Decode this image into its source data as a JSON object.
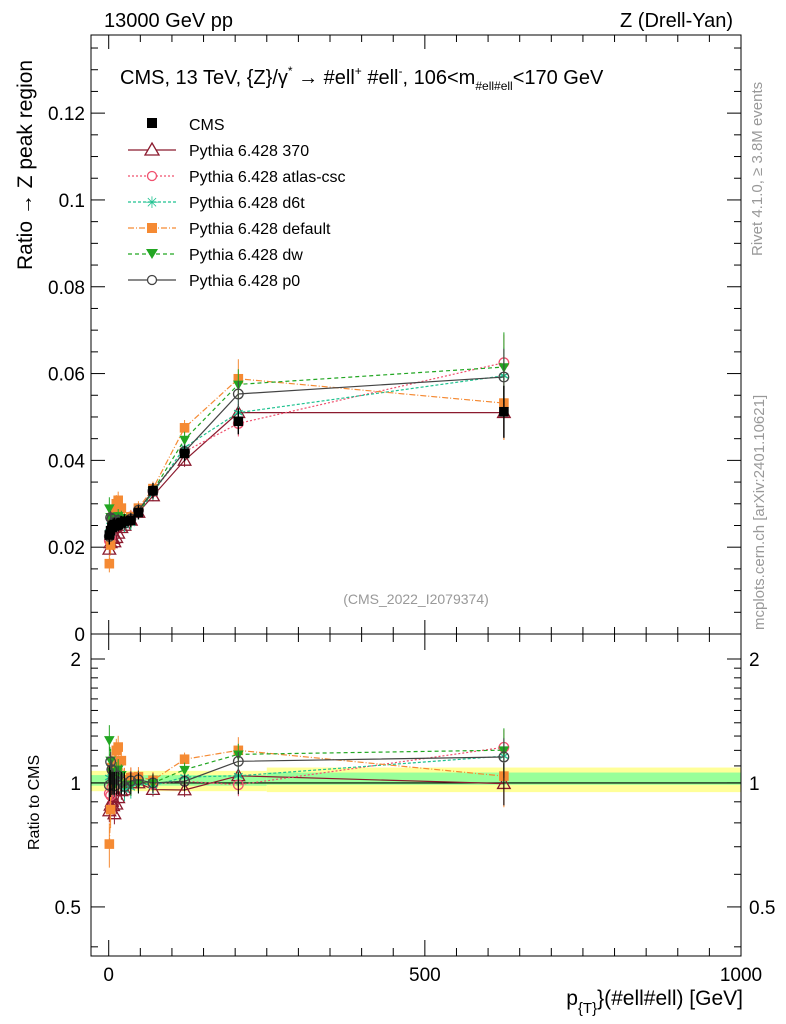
{
  "header": {
    "left": "13000 GeV pp",
    "right": "Z (Drell-Yan)"
  },
  "side_labels": {
    "rivet": "Rivet 4.1.0, ≥ 3.8M events",
    "mcplots": "mcplots.cern.ch [arXiv:2401.10621]"
  },
  "colors": {
    "cms": "#000000",
    "p370": "#8b1a2e",
    "atlas": "#f0506e",
    "d6t": "#1fc290",
    "default": "#f58a33",
    "dw": "#22a622",
    "p0": "#444444",
    "band_outer": "#ffff99",
    "band_inner": "#99ff99",
    "watermark": "#999999"
  },
  "chart_data": [
    {
      "type": "line",
      "panel": "main",
      "title": "CMS, 13 TeV, {Z}/γ* → #ell⁺ #ell⁻, 106<m_{#ell#ell}<170 GeV",
      "title_parts": {
        "a": "CMS, 13 TeV, {Z}/",
        "b": "γ",
        "c": "*",
        "d": " →  #ell",
        "e": "+",
        "f": " #ell",
        "g": "-",
        "h": ", 106<m",
        "i": "#ell#ell",
        "j": "<170 GeV"
      },
      "ylabel": "Ratio → Z peak region",
      "xlim": [
        -28,
        1000
      ],
      "ylim": [
        0,
        0.138
      ],
      "yticks": [
        {
          "v": 0,
          "label": "0"
        },
        {
          "v": 0.02,
          "label": "0.02"
        },
        {
          "v": 0.04,
          "label": "0.04"
        },
        {
          "v": 0.06,
          "label": "0.06"
        },
        {
          "v": 0.08,
          "label": "0.08"
        },
        {
          "v": 0.1,
          "label": "0.1"
        },
        {
          "v": 0.12,
          "label": "0.12"
        }
      ],
      "watermark": "(CMS_2022_I2079374)",
      "x": [
        1,
        3,
        5,
        7,
        9,
        12,
        15,
        20,
        25,
        35,
        47,
        70,
        120,
        205,
        625
      ],
      "series": [
        {
          "name": "CMS",
          "key": "cms",
          "marker": "square-filled",
          "dash": "solid",
          "values": [
            0.0228,
            0.0238,
            0.0246,
            0.025,
            0.0252,
            0.025,
            0.0252,
            0.0256,
            0.026,
            0.0262,
            0.028,
            0.033,
            0.0416,
            0.049,
            0.0512
          ],
          "errors": [
            0.0022,
            0.0018,
            0.0016,
            0.0016,
            0.0016,
            0.0016,
            0.0016,
            0.0016,
            0.0016,
            0.0016,
            0.0016,
            0.0018,
            0.0018,
            0.003,
            0.006
          ]
        },
        {
          "name": "Pythia 6.428 370",
          "key": "p370",
          "marker": "triangle-open",
          "dash": "solid",
          "values": [
            0.0195,
            0.021,
            0.0222,
            0.022,
            0.0212,
            0.0222,
            0.0232,
            0.0245,
            0.025,
            0.0262,
            0.028,
            0.0318,
            0.04,
            0.051,
            0.051
          ],
          "errors": [
            0.0012,
            0.0012,
            0.0012,
            0.0012,
            0.0012,
            0.0012,
            0.0012,
            0.0012,
            0.0012,
            0.0012,
            0.0012,
            0.0012,
            0.0015,
            0.002,
            0.006
          ]
        },
        {
          "name": "Pythia 6.428 atlas-csc",
          "key": "atlas",
          "marker": "circle-open",
          "dash": "2,2",
          "values": [
            0.0215,
            0.0222,
            0.024,
            0.0262,
            0.0268,
            0.0265,
            0.0262,
            0.0258,
            0.0262,
            0.027,
            0.0285,
            0.0328,
            0.042,
            0.0485,
            0.0625
          ],
          "errors": [
            0.0015,
            0.0015,
            0.0015,
            0.0015,
            0.0015,
            0.0015,
            0.0015,
            0.0015,
            0.0015,
            0.0015,
            0.0015,
            0.0015,
            0.0018,
            0.003,
            0.0065
          ]
        },
        {
          "name": "Pythia 6.428 d6t",
          "key": "d6t",
          "marker": "star",
          "dash": "3,2",
          "values": [
            0.0235,
            0.026,
            0.0255,
            0.025,
            0.0262,
            0.027,
            0.0265,
            0.0258,
            0.025,
            0.0255,
            0.028,
            0.0325,
            0.043,
            0.051,
            0.0595
          ],
          "errors": [
            0.0015,
            0.0015,
            0.0015,
            0.0015,
            0.0015,
            0.0015,
            0.0015,
            0.0015,
            0.0015,
            0.0015,
            0.0015,
            0.0015,
            0.0018,
            0.003,
            0.0065
          ]
        },
        {
          "name": "Pythia 6.428 default",
          "key": "default",
          "marker": "square-filled",
          "dash": "6,2,1,2",
          "values": [
            0.0162,
            0.0205,
            0.0268,
            0.0272,
            0.0282,
            0.03,
            0.0308,
            0.029,
            0.0265,
            0.027,
            0.029,
            0.0335,
            0.0475,
            0.0588,
            0.0532
          ],
          "errors": [
            0.002,
            0.002,
            0.002,
            0.002,
            0.002,
            0.002,
            0.002,
            0.002,
            0.0018,
            0.0016,
            0.0016,
            0.0016,
            0.0018,
            0.0045,
            0.0085
          ]
        },
        {
          "name": "Pythia 6.428 dw",
          "key": "dw",
          "marker": "triangle-down-filled",
          "dash": "4,3",
          "values": [
            0.029,
            0.027,
            0.0262,
            0.0255,
            0.025,
            0.0265,
            0.0272,
            0.0268,
            0.0258,
            0.026,
            0.028,
            0.033,
            0.0448,
            0.0575,
            0.0615
          ],
          "errors": [
            0.0025,
            0.0018,
            0.0016,
            0.0016,
            0.0016,
            0.0016,
            0.0016,
            0.0016,
            0.0016,
            0.0016,
            0.0016,
            0.0016,
            0.0018,
            0.0035,
            0.008
          ]
        },
        {
          "name": "Pythia 6.428 p0",
          "key": "p0",
          "marker": "circle-open",
          "dash": "solid",
          "values": [
            0.0225,
            0.0268,
            0.0265,
            0.0255,
            0.0248,
            0.0258,
            0.0262,
            0.0258,
            0.0255,
            0.0265,
            0.0285,
            0.033,
            0.042,
            0.0553,
            0.0592
          ],
          "errors": [
            0.0015,
            0.0015,
            0.0015,
            0.0015,
            0.0015,
            0.0015,
            0.0015,
            0.0015,
            0.0015,
            0.0015,
            0.0015,
            0.0015,
            0.0018,
            0.003,
            0.0065
          ]
        }
      ]
    },
    {
      "type": "line",
      "panel": "ratio",
      "ylabel": "Ratio to CMS",
      "xlabel": "p_{T}(#ell#ell) [GeV]",
      "xlabel_parts": {
        "p": "p",
        "sub": "{T}",
        "rest": "}(#ell#ell) [GeV]"
      },
      "xlim": [
        -28,
        1000
      ],
      "ylim": [
        0.38,
        2.3
      ],
      "yscale": "log",
      "yticks": [
        {
          "v": 0.5,
          "label": "0.5"
        },
        {
          "v": 1,
          "label": "1"
        },
        {
          "v": 2,
          "label": "2"
        }
      ],
      "xticks": [
        {
          "v": 0,
          "label": "0"
        },
        {
          "v": 500,
          "label": "500"
        },
        {
          "v": 1000,
          "label": "1000"
        }
      ],
      "reference": 1.0,
      "bands": [
        {
          "x0": -28,
          "x1": 250,
          "inner": [
            0.985,
            1.045
          ],
          "outer": [
            0.955,
            1.07
          ]
        },
        {
          "x0": 250,
          "x1": 1000,
          "inner": [
            0.99,
            1.06
          ],
          "outer": [
            0.95,
            1.09
          ]
        }
      ]
    }
  ]
}
